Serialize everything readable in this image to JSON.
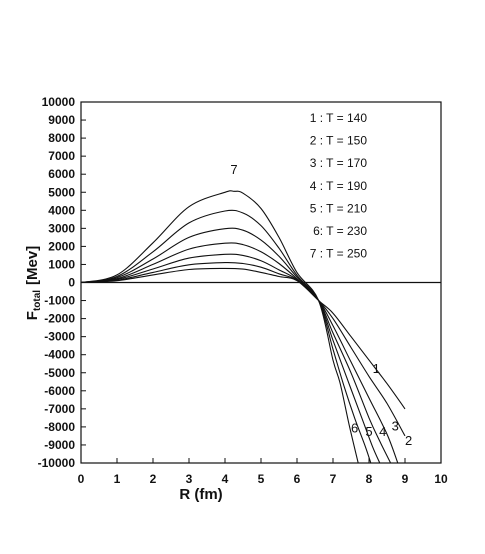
{
  "chart_data": {
    "type": "line",
    "xlabel": "R (fm)",
    "ylabel_main": "F",
    "ylabel_sub": "total",
    "ylabel_unit": "[Mev]",
    "xlim": [
      0,
      10
    ],
    "ylim": [
      -10000,
      10000
    ],
    "xticks": [
      0,
      1,
      2,
      3,
      4,
      5,
      6,
      7,
      8,
      9,
      10
    ],
    "yticks": [
      10000,
      9000,
      8000,
      7000,
      6000,
      5000,
      4000,
      3000,
      2000,
      1000,
      0,
      -1000,
      -2000,
      -3000,
      -4000,
      -5000,
      -6000,
      -7000,
      -8000,
      -9000,
      -10000
    ],
    "grid": false,
    "zero_line": true,
    "legend_position": "top-right",
    "legend": [
      "1 : T = 140",
      "2 : T = 150",
      "3 : T = 170",
      "4 : T = 190",
      "5 : T = 210",
      "6: T = 230",
      "7 : T = 250"
    ],
    "series": [
      {
        "name": "1",
        "x": [
          0,
          1,
          2,
          3,
          4,
          4.5,
          5,
          5.5,
          6,
          6.6,
          7,
          7.5,
          8,
          8.5,
          9
        ],
        "y": [
          0,
          100,
          420,
          720,
          780,
          740,
          560,
          330,
          100,
          -1000,
          -1700,
          -3000,
          -4300,
          -5600,
          -7000
        ]
      },
      {
        "name": "2",
        "x": [
          0,
          1,
          2,
          3,
          4,
          4.5,
          5,
          5.5,
          6,
          6.6,
          7,
          7.5,
          8,
          8.5,
          9
        ],
        "y": [
          0,
          130,
          560,
          980,
          1100,
          1050,
          850,
          480,
          120,
          -1000,
          -2000,
          -3600,
          -5200,
          -6700,
          -8500
        ]
      },
      {
        "name": "3",
        "x": [
          0,
          1,
          2,
          3,
          4,
          4.5,
          5,
          5.5,
          6,
          6.6,
          7,
          7.5,
          8,
          8.5,
          8.8
        ],
        "y": [
          0,
          170,
          750,
          1350,
          1560,
          1500,
          1200,
          700,
          150,
          -1000,
          -2400,
          -4400,
          -6400,
          -8400,
          -10000
        ]
      },
      {
        "name": "4",
        "x": [
          0,
          1,
          2,
          3,
          4,
          4.5,
          5,
          5.5,
          6,
          6.6,
          7,
          7.5,
          8,
          8.3,
          8.6
        ],
        "y": [
          0,
          210,
          1000,
          1850,
          2180,
          2100,
          1700,
          1050,
          200,
          -1000,
          -2800,
          -5000,
          -7500,
          -8800,
          -10000
        ]
      },
      {
        "name": "5",
        "x": [
          0,
          1,
          2,
          3,
          4,
          4.5,
          5,
          5.5,
          6,
          6.6,
          7,
          7.5,
          7.8,
          8.1,
          8.3
        ],
        "y": [
          0,
          270,
          1300,
          2500,
          2980,
          2900,
          2350,
          1450,
          300,
          -1000,
          -3200,
          -5900,
          -7500,
          -9100,
          -10000
        ]
      },
      {
        "name": "6",
        "x": [
          0,
          1,
          2,
          3,
          4,
          4.5,
          5,
          5.5,
          6,
          6.6,
          7,
          7.3,
          7.6,
          7.9,
          8.05
        ],
        "y": [
          0,
          330,
          1700,
          3300,
          3960,
          3850,
          3150,
          1900,
          400,
          -1000,
          -3700,
          -5700,
          -7500,
          -9100,
          -10000
        ]
      },
      {
        "name": "7",
        "x": [
          0,
          1,
          2,
          3,
          4,
          4.25,
          4.5,
          5,
          5.5,
          6,
          6.6,
          7,
          7.2,
          7.45,
          7.7
        ],
        "y": [
          0,
          420,
          2200,
          4200,
          5000,
          5050,
          4950,
          4100,
          2500,
          550,
          -1000,
          -4300,
          -5600,
          -7900,
          -10000
        ]
      }
    ],
    "curve_labels": [
      "1",
      "2",
      "3",
      "4",
      "5",
      "6",
      "7"
    ]
  }
}
